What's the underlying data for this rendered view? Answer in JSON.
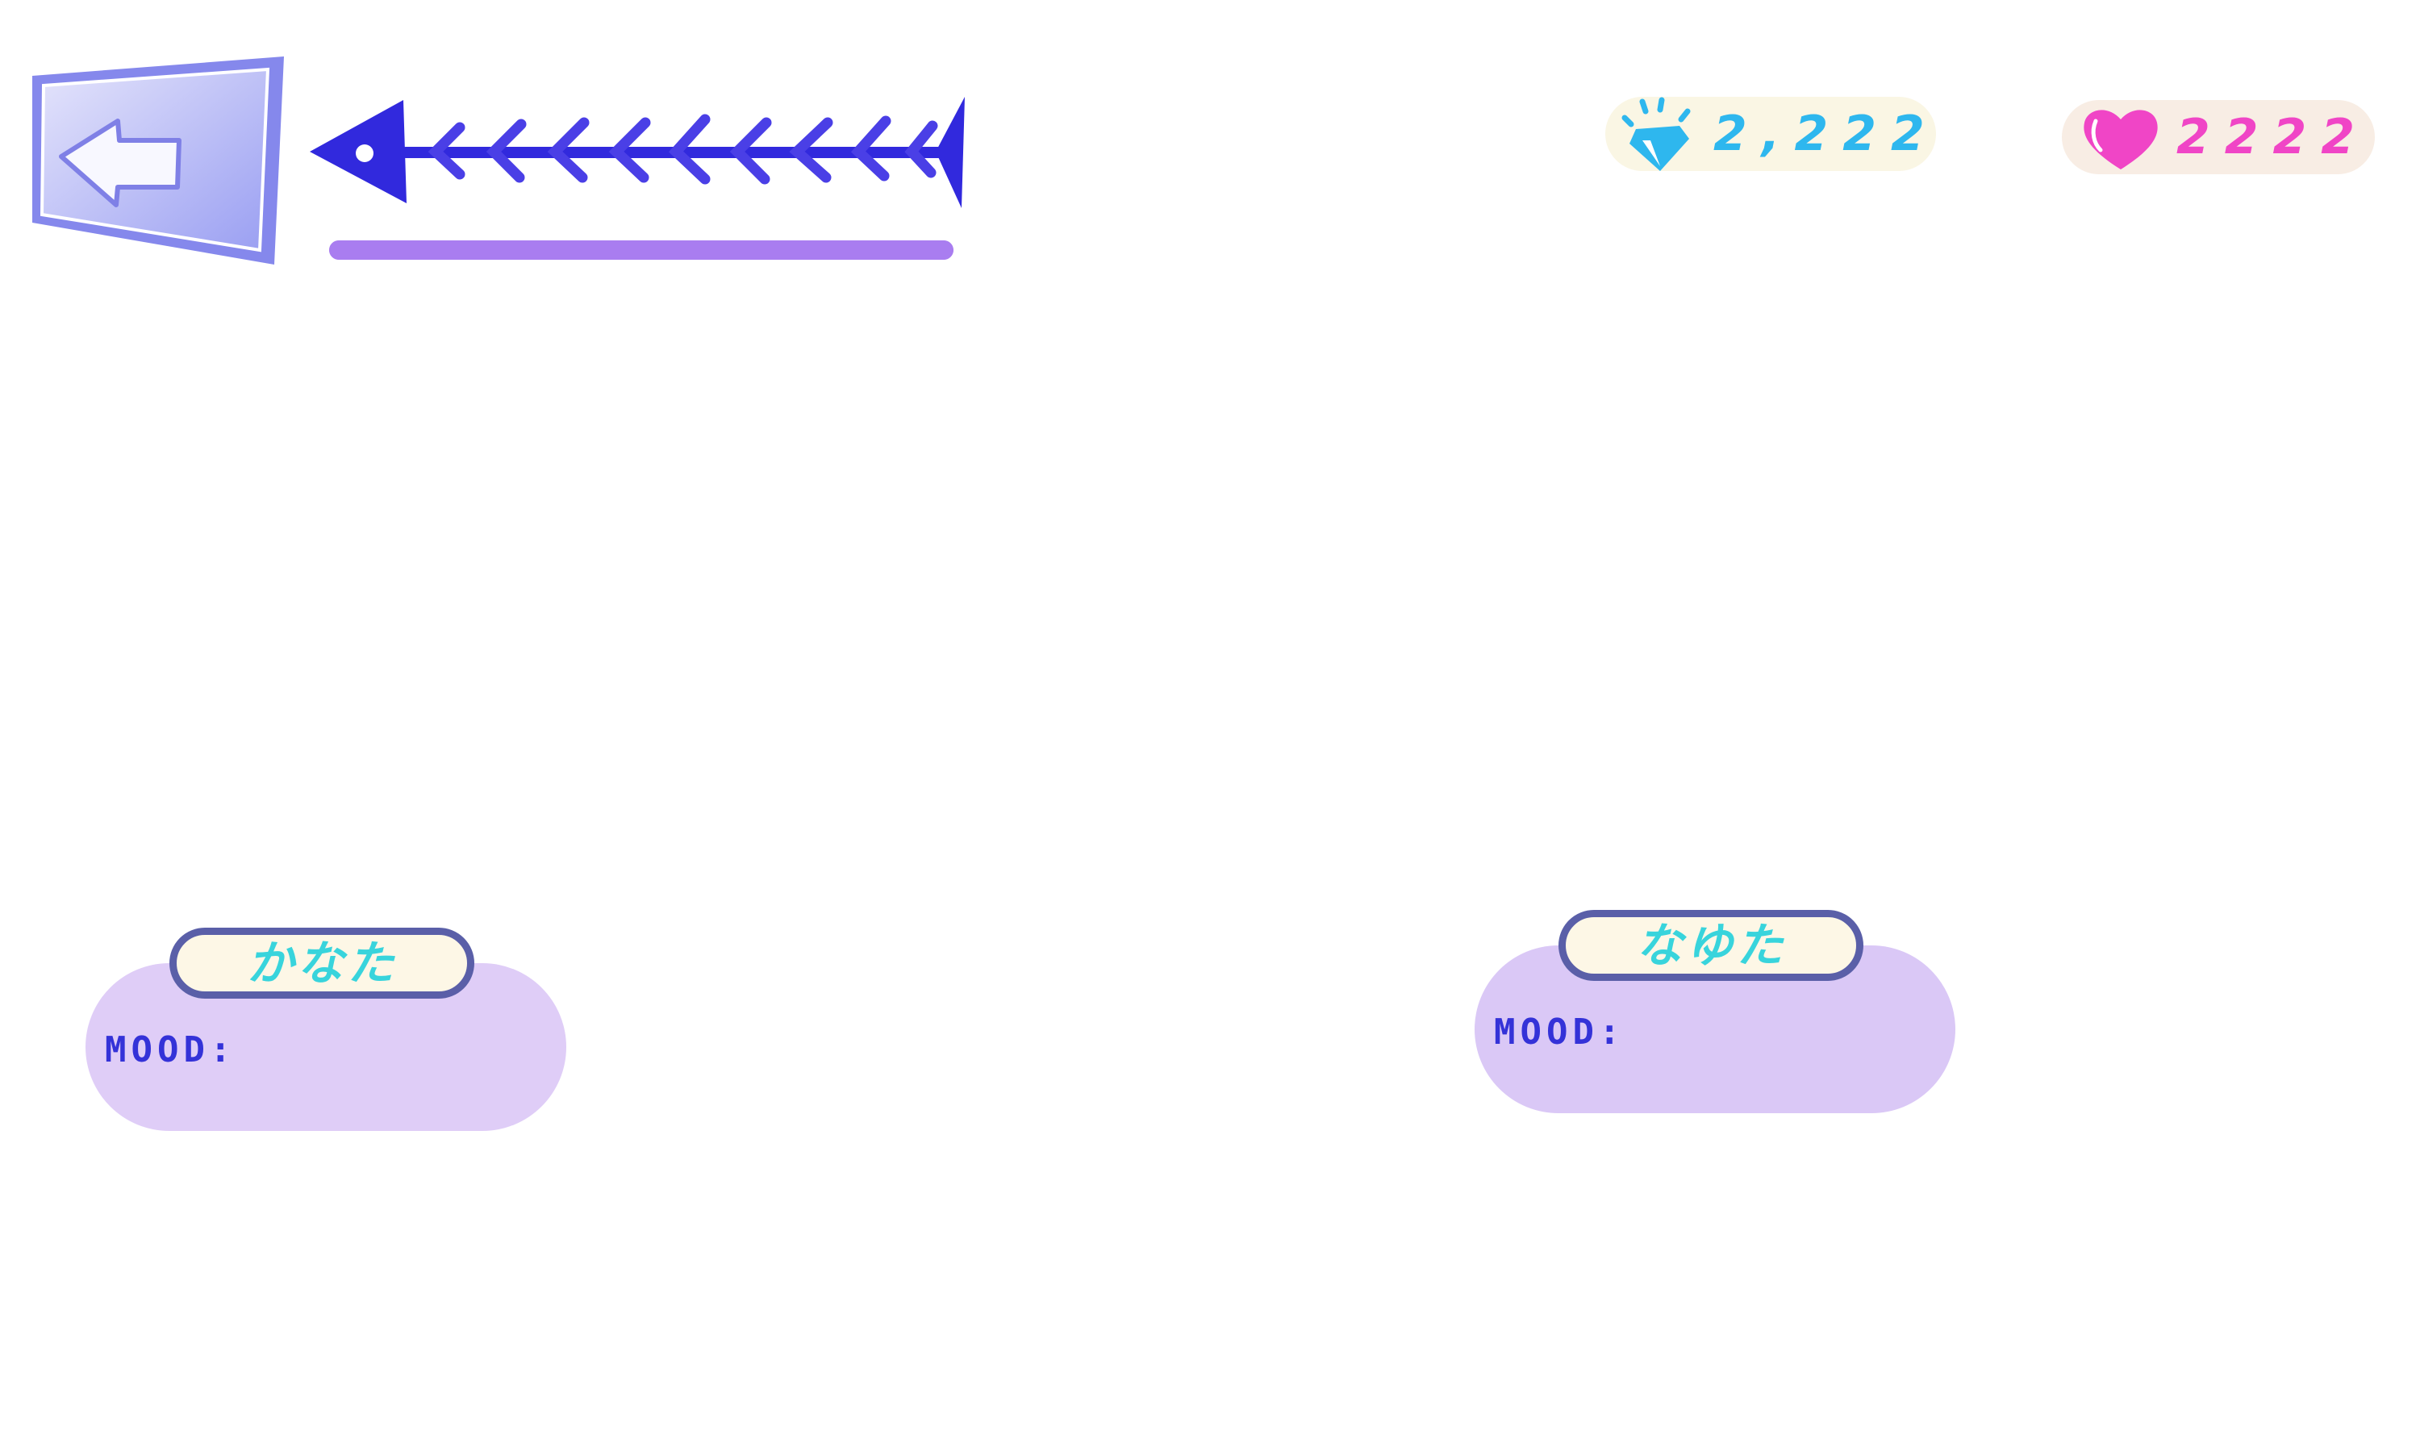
{
  "header": {
    "back_button": {
      "icon": "back-arrow-icon"
    },
    "progress": {
      "icon": "fishbone-arrow-icon",
      "fraction": 1.0,
      "color": "#a97df0"
    }
  },
  "currency": {
    "gems": {
      "icon": "diamond-icon",
      "value": "2,222",
      "color": "#2eb7ee"
    },
    "hearts": {
      "icon": "heart-icon",
      "value": "2222",
      "color": "#f045c6"
    }
  },
  "characters": [
    {
      "name": "かなた",
      "mood_label": "MOOD:",
      "mood_value": ""
    },
    {
      "name": "なゆた",
      "mood_label": "MOOD:",
      "mood_value": ""
    }
  ],
  "colors": {
    "accent": "#3432d8",
    "card_bg": "#dfcdf7",
    "name_text": "#38d4dc",
    "name_border": "#5a5fa8"
  }
}
